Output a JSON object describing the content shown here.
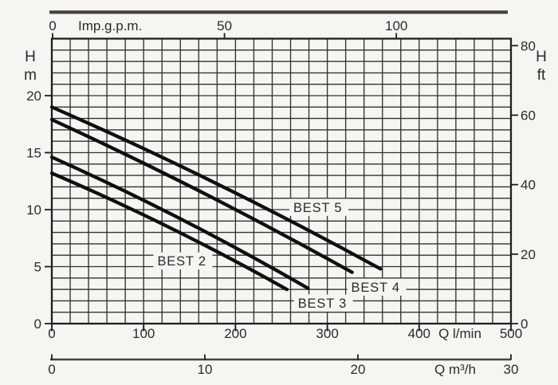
{
  "meta": {
    "paper_color": "#f7f5f1",
    "ink_color": "#2b2b2b",
    "grid_color": "#33322f",
    "border_color": "#1f1e1c",
    "curve_color": "#0f0f0e",
    "bar_color": "#45433e"
  },
  "chart_data": {
    "type": "line",
    "title": "",
    "description": "Pump head-capacity performance curves for BEST 2 / BEST 3 / BEST 4 / BEST 5",
    "grid": {
      "on": true,
      "columns": 25,
      "rows": 25
    },
    "axes": {
      "top": {
        "label": "Imp.g.p.m.",
        "ticks": [
          0,
          50,
          100
        ]
      },
      "left": {
        "label_lines": [
          "H",
          "m"
        ],
        "ticks": [
          0,
          5,
          10,
          15,
          20
        ],
        "range": [
          0,
          25
        ]
      },
      "right": {
        "label_lines": [
          "H",
          "ft"
        ],
        "ticks": [
          0,
          20,
          40,
          60,
          80
        ],
        "range": [
          0,
          82
        ]
      },
      "bottom": {
        "label": "Q l/min",
        "ticks": [
          0,
          100,
          200,
          300,
          400,
          500
        ],
        "range": [
          0,
          500
        ]
      },
      "bottom_secondary": {
        "label": "Q m³/h",
        "ticks": [
          0,
          10,
          20,
          30
        ],
        "range": [
          0,
          30
        ]
      }
    },
    "series": [
      {
        "name": "BEST 2",
        "q_lmin": [
          0,
          129,
          256
        ],
        "h_m": [
          13.2,
          8.4,
          3.0
        ]
      },
      {
        "name": "BEST 3",
        "q_lmin": [
          0,
          140,
          279
        ],
        "h_m": [
          14.6,
          9.2,
          3.1
        ]
      },
      {
        "name": "BEST 4",
        "q_lmin": [
          0,
          164,
          327
        ],
        "h_m": [
          17.9,
          11.5,
          4.5
        ]
      },
      {
        "name": "BEST 5",
        "q_lmin": [
          0,
          179,
          358
        ],
        "h_m": [
          19.0,
          12.3,
          4.8
        ]
      }
    ],
    "annotations": [
      {
        "text": "BEST 2",
        "q_lmin": 115,
        "h_m": 5.1
      },
      {
        "text": "BEST 3",
        "q_lmin": 268,
        "h_m": 1.4
      },
      {
        "text": "BEST 4",
        "q_lmin": 326,
        "h_m": 2.8
      },
      {
        "text": "BEST 5",
        "q_lmin": 263,
        "h_m": 9.8
      }
    ]
  }
}
